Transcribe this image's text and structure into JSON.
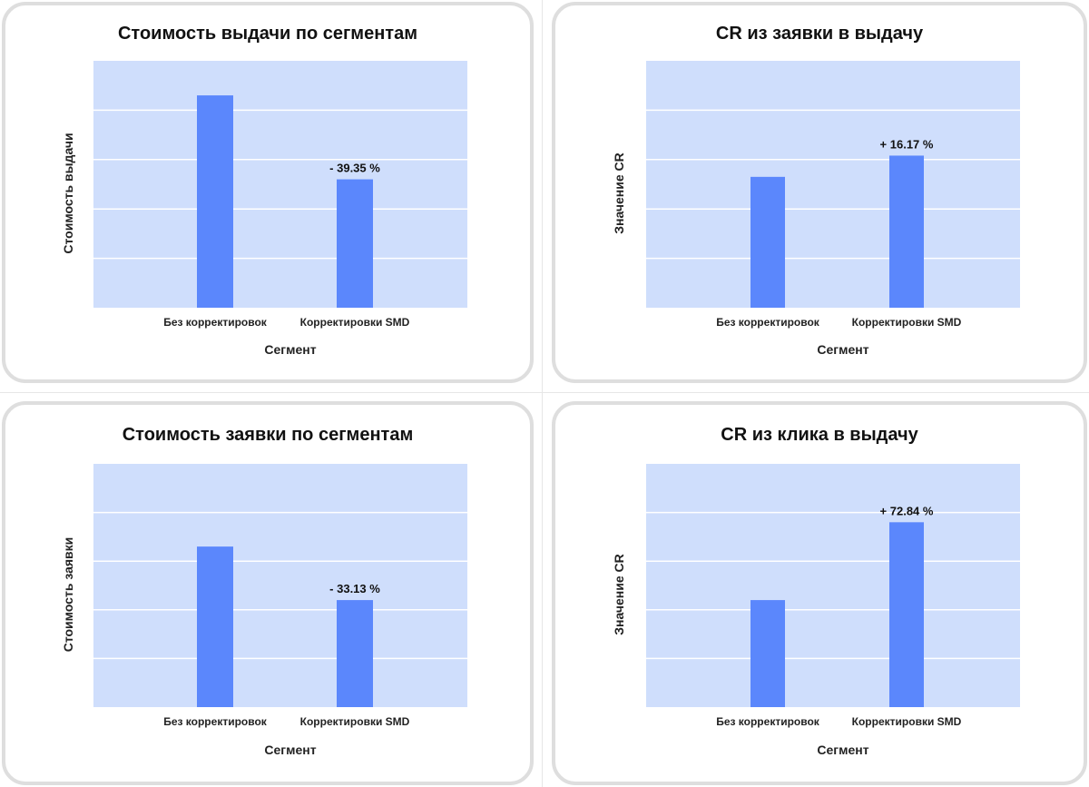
{
  "chart_data": [
    {
      "type": "bar",
      "title": "Стоимость выдачи по сегментам",
      "xlabel": "Сегмент",
      "ylabel": "Стоимость выдачи",
      "categories": [
        "Без корректировок",
        "Корректировки SMD"
      ],
      "values": [
        4.3,
        2.6
      ],
      "ylim": [
        0,
        5
      ],
      "data_labels": [
        "",
        "- 39.35 %"
      ],
      "y_ticks_labeled": false,
      "grid": true,
      "colors": {
        "bar": "#5b87fc",
        "plot_background": "#cfdefc",
        "gridline": "#ffffff"
      }
    },
    {
      "type": "bar",
      "title": "CR из заявки в выдачу",
      "xlabel": "Сегмент",
      "ylabel": "Значение CR",
      "categories": [
        "Без корректировок",
        "Корректировки SMD"
      ],
      "values": [
        2.65,
        3.08
      ],
      "ylim": [
        0,
        5
      ],
      "data_labels": [
        "",
        "+ 16.17 %"
      ],
      "y_ticks_labeled": false,
      "grid": true,
      "colors": {
        "bar": "#5b87fc",
        "plot_background": "#cfdefc",
        "gridline": "#ffffff"
      }
    },
    {
      "type": "bar",
      "title": "Стоимость заявки по сегментам",
      "xlabel": "Сегмент",
      "ylabel": "Стоимость заявки",
      "categories": [
        "Без корректировок",
        "Корректировки SMD"
      ],
      "values": [
        3.3,
        2.2
      ],
      "ylim": [
        0,
        5
      ],
      "data_labels": [
        "",
        "- 33.13 %"
      ],
      "y_ticks_labeled": false,
      "grid": true,
      "colors": {
        "bar": "#5b87fc",
        "plot_background": "#cfdefc",
        "gridline": "#ffffff"
      }
    },
    {
      "type": "bar",
      "title": "CR из клика в выдачу",
      "xlabel": "Сегмент",
      "ylabel": "Значение CR",
      "categories": [
        "Без корректировок",
        "Корректировки SMD"
      ],
      "values": [
        2.2,
        3.8
      ],
      "ylim": [
        0,
        5
      ],
      "data_labels": [
        "",
        "+ 72.84 %"
      ],
      "y_ticks_labeled": false,
      "grid": true,
      "colors": {
        "bar": "#5b87fc",
        "plot_background": "#cfdefc",
        "gridline": "#ffffff"
      }
    }
  ]
}
